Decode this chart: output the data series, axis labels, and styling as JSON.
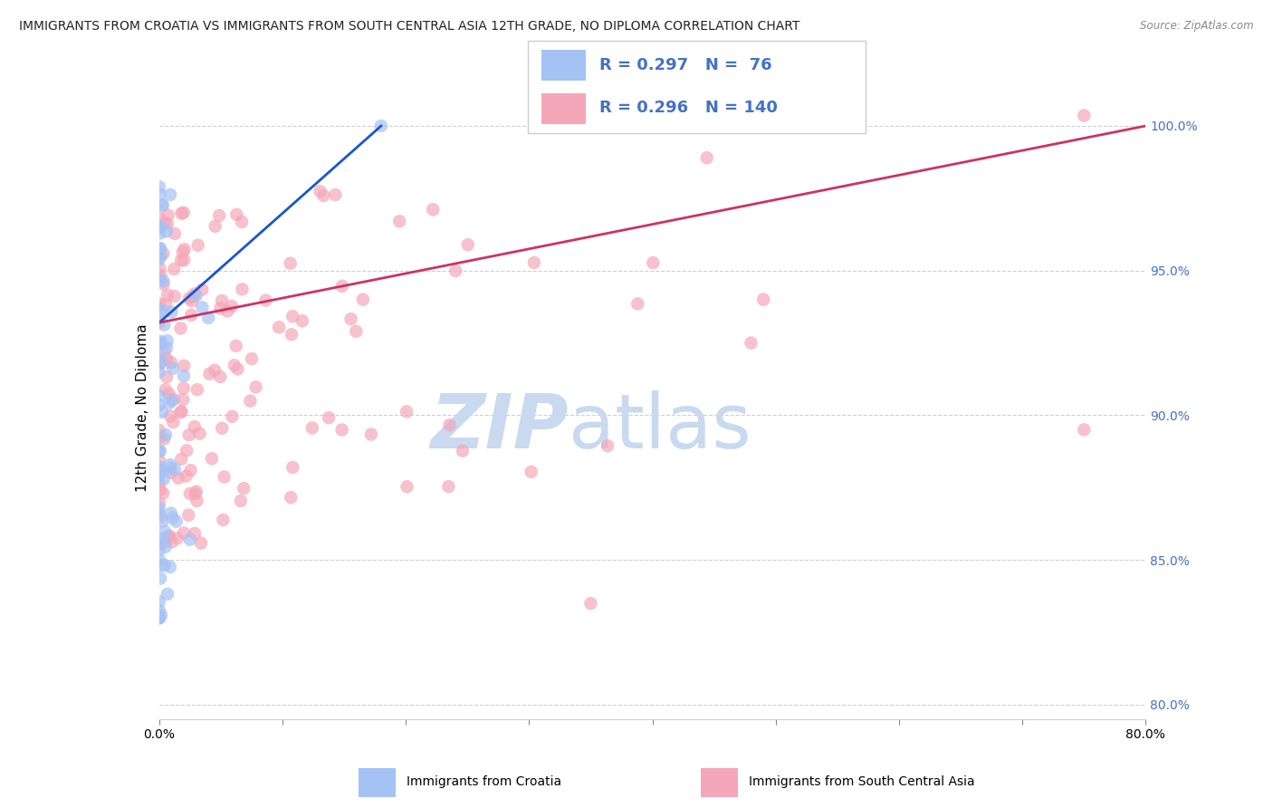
{
  "title": "IMMIGRANTS FROM CROATIA VS IMMIGRANTS FROM SOUTH CENTRAL ASIA 12TH GRADE, NO DIPLOMA CORRELATION CHART",
  "source": "Source: ZipAtlas.com",
  "ylabel": "12th Grade, No Diploma",
  "croatia_R": 0.297,
  "croatia_N": 76,
  "sca_R": 0.296,
  "sca_N": 140,
  "legend_croatia": "Immigrants from Croatia",
  "legend_sca": "Immigrants from South Central Asia",
  "blue_color": "#a4c2f4",
  "pink_color": "#f4a7b9",
  "blue_line_color": "#1a56cc",
  "pink_line_color": "#cc3366",
  "axis_label_color": "#4472c4",
  "watermark_zip_color": "#c9d9f0",
  "watermark_atlas_color": "#b0c8e8",
  "title_color": "#222222",
  "grid_color": "#d0d0d0",
  "right_ytick_values": [
    1.0,
    0.95,
    0.9,
    0.85,
    0.8
  ],
  "xlim": [
    0.0,
    0.8
  ],
  "ylim": [
    0.795,
    1.01
  ],
  "cr_trend_x0": 0.0,
  "cr_trend_y0": 0.932,
  "cr_trend_x1": 0.18,
  "cr_trend_y1": 1.0,
  "sca_trend_x0": 0.0,
  "sca_trend_y0": 0.932,
  "sca_trend_x1": 0.8,
  "sca_trend_y1": 1.0
}
